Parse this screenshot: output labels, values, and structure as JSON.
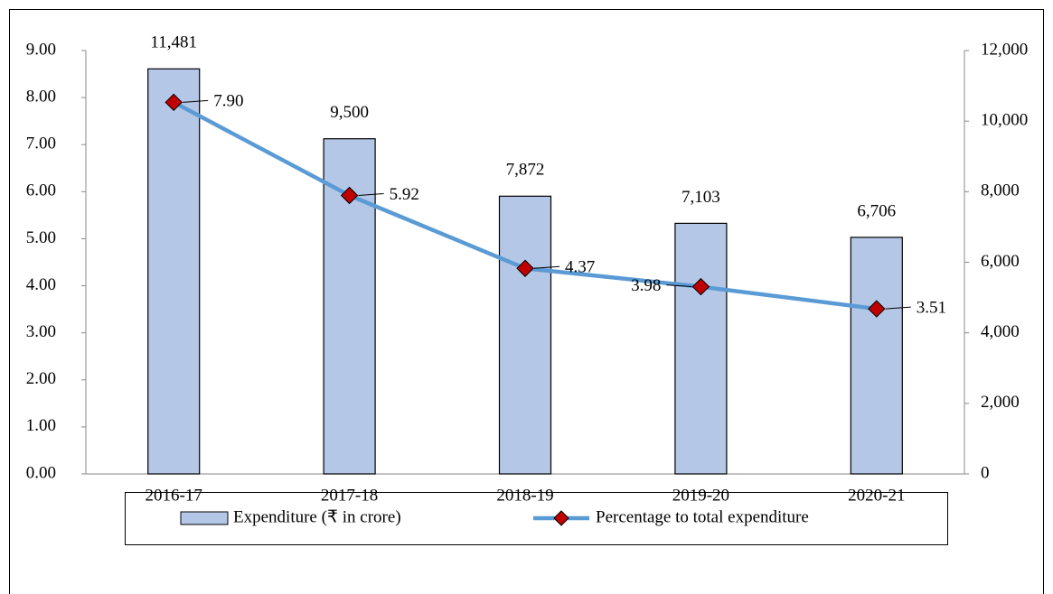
{
  "chart_data": {
    "type": "combo",
    "categories": [
      "2016-17",
      "2017-18",
      "2018-19",
      "2019-20",
      "2020-21"
    ],
    "series": [
      {
        "name": "Expenditure (₹ in crore)",
        "type": "bar",
        "axis": "y2",
        "color": "#b4c7e7",
        "values": [
          11481,
          9500,
          7872,
          7103,
          6706
        ],
        "value_labels": [
          "11,481",
          "9,500",
          "7,872",
          "7,103",
          "6,706"
        ]
      },
      {
        "name": "Percentage to total expenditure",
        "type": "line",
        "axis": "y",
        "color": "#5b9bd5",
        "marker_color": "#c00000",
        "values": [
          7.9,
          5.92,
          4.37,
          3.98,
          3.51
        ],
        "value_labels": [
          "7.90",
          "5.92",
          "4.37",
          "3.98",
          "3.51"
        ]
      }
    ],
    "ylim": [
      0,
      9
    ],
    "yticks": [
      {
        "value": 0,
        "label": "0.00"
      },
      {
        "value": 1,
        "label": "1.00"
      },
      {
        "value": 2,
        "label": "2.00"
      },
      {
        "value": 3,
        "label": "3.00"
      },
      {
        "value": 4,
        "label": "4.00"
      },
      {
        "value": 5,
        "label": "5.00"
      },
      {
        "value": 6,
        "label": "6.00"
      },
      {
        "value": 7,
        "label": "7.00"
      },
      {
        "value": 8,
        "label": "8.00"
      },
      {
        "value": 9,
        "label": "9.00"
      }
    ],
    "y2lim": [
      0,
      12000
    ],
    "y2ticks": [
      0,
      {
        "value": 2000,
        "label": "2,000"
      },
      {
        "value": 4000,
        "label": "4,000"
      },
      {
        "value": 6000,
        "label": "6,000"
      },
      {
        "value": 8000,
        "label": "8,000"
      },
      {
        "value": 10000,
        "label": "10,000"
      },
      {
        "value": 12000,
        "label": "12,000"
      }
    ],
    "legend": "bottom"
  }
}
